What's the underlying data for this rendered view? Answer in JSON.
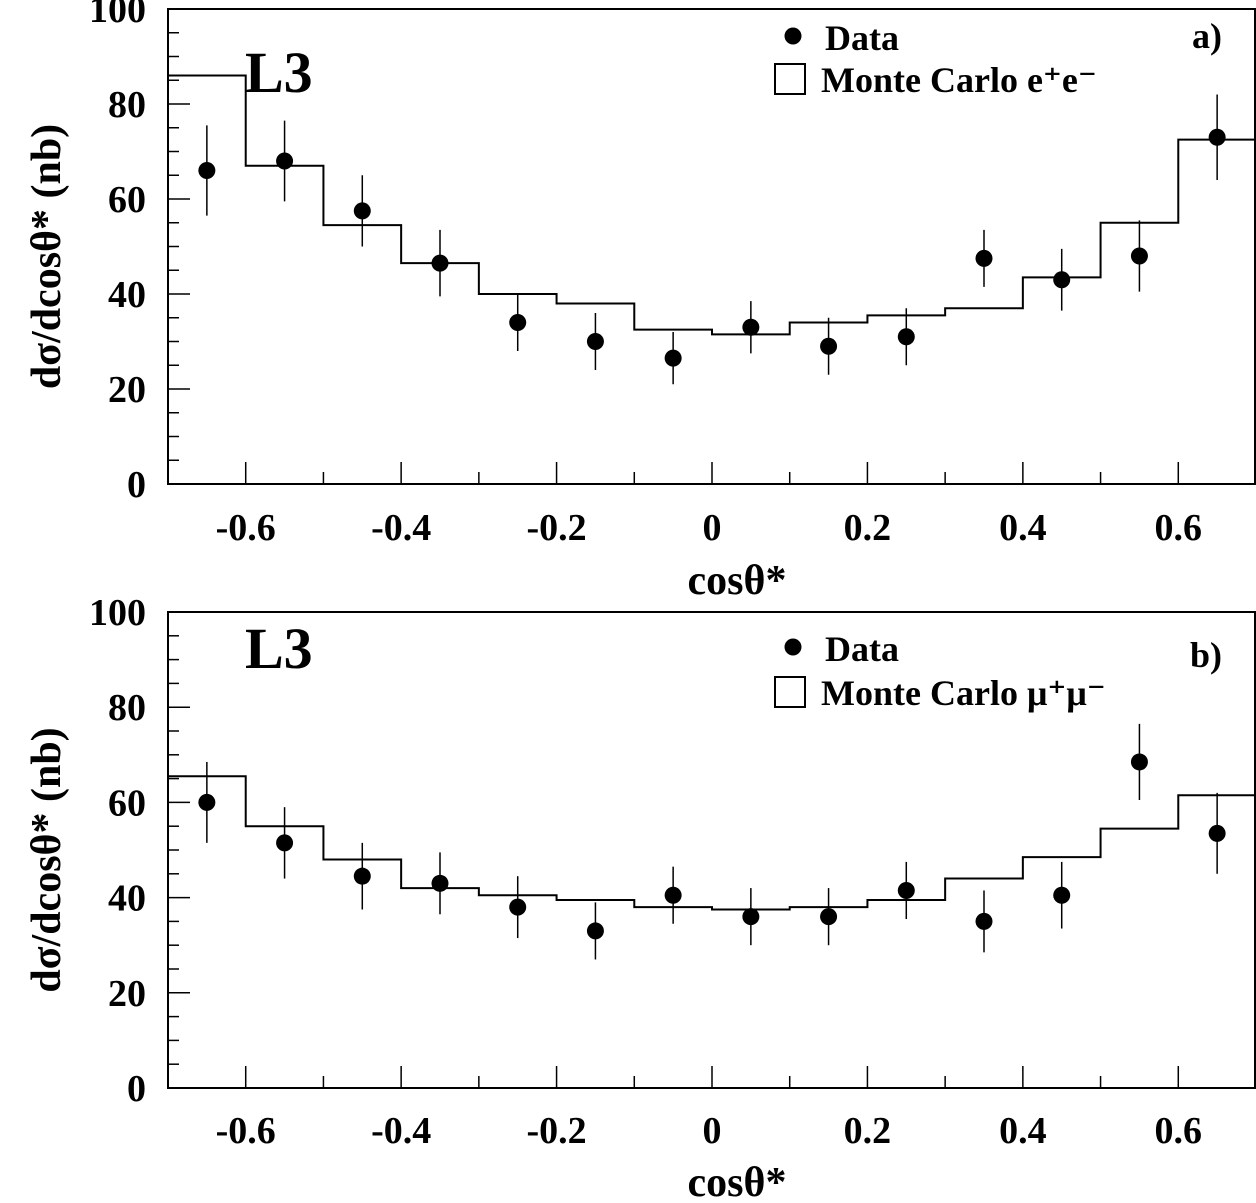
{
  "chart_data": [
    {
      "type": "scatter",
      "experiment_label": "L3",
      "panel_tag": "a)",
      "ylabel": "dσ/dcosθ* (nb)",
      "xlabel": "cosθ*",
      "xlim": [
        -0.7,
        0.7
      ],
      "ylim": [
        0,
        100
      ],
      "x_ticks": [
        "-0.6",
        "-0.4",
        "-0.2",
        "0",
        "0.2",
        "0.4",
        "0.6"
      ],
      "y_ticks": [
        "0",
        "20",
        "40",
        "60",
        "80",
        "100"
      ],
      "legend": {
        "data_label": "Data",
        "mc_label": "Monte Carlo e⁺e⁻",
        "placement": "top-right"
      },
      "data": {
        "name": "Data",
        "x": [
          -0.65,
          -0.55,
          -0.45,
          -0.35,
          -0.25,
          -0.15,
          -0.05,
          0.05,
          0.15,
          0.25,
          0.35,
          0.45,
          0.55,
          0.65
        ],
        "y": [
          66,
          68,
          57.5,
          46.5,
          34,
          30,
          26.5,
          33,
          29,
          31,
          47.5,
          43,
          48,
          73
        ],
        "err": [
          9.5,
          8.5,
          7.5,
          7,
          6,
          6,
          5.5,
          5.5,
          6,
          6,
          6,
          6.5,
          7.5,
          9
        ]
      },
      "monte_carlo": {
        "name": "Monte Carlo e⁺e⁻",
        "bin_edges": [
          -0.7,
          -0.6,
          -0.5,
          -0.4,
          -0.3,
          -0.2,
          -0.1,
          0,
          0.1,
          0.2,
          0.3,
          0.4,
          0.5,
          0.6,
          0.7
        ],
        "values": [
          86,
          67,
          54.5,
          46.5,
          40,
          38,
          32.5,
          31.5,
          34,
          35.5,
          37,
          43.5,
          55,
          72.5
        ]
      }
    },
    {
      "type": "scatter",
      "experiment_label": "L3",
      "panel_tag": "b)",
      "ylabel": "dσ/dcosθ* (nb)",
      "xlabel": "cosθ*",
      "xlim": [
        -0.7,
        0.7
      ],
      "ylim": [
        0,
        100
      ],
      "x_ticks": [
        "-0.6",
        "-0.4",
        "-0.2",
        "0",
        "0.2",
        "0.4",
        "0.6"
      ],
      "y_ticks": [
        "0",
        "20",
        "40",
        "60",
        "80",
        "100"
      ],
      "legend": {
        "data_label": "Data",
        "mc_label": "Monte Carlo μ⁺μ⁻",
        "placement": "top-right"
      },
      "data": {
        "name": "Data",
        "x": [
          -0.65,
          -0.55,
          -0.45,
          -0.35,
          -0.25,
          -0.15,
          -0.05,
          0.05,
          0.15,
          0.25,
          0.35,
          0.45,
          0.55,
          0.65
        ],
        "y": [
          60,
          51.5,
          44.5,
          43,
          38,
          33,
          40.5,
          36,
          36,
          41.5,
          35,
          40.5,
          68.5,
          53.5
        ],
        "err": [
          8.5,
          7.5,
          7,
          6.5,
          6.5,
          6,
          6,
          6,
          6,
          6,
          6.5,
          7,
          8,
          8.5
        ]
      },
      "monte_carlo": {
        "name": "Monte Carlo μ⁺μ⁻",
        "bin_edges": [
          -0.7,
          -0.6,
          -0.5,
          -0.4,
          -0.3,
          -0.2,
          -0.1,
          0,
          0.1,
          0.2,
          0.3,
          0.4,
          0.5,
          0.6,
          0.7
        ],
        "values": [
          65.5,
          55,
          48,
          42,
          40.5,
          39.5,
          38,
          37.5,
          38,
          39.5,
          44,
          48.5,
          54.5,
          61.5
        ]
      }
    }
  ]
}
